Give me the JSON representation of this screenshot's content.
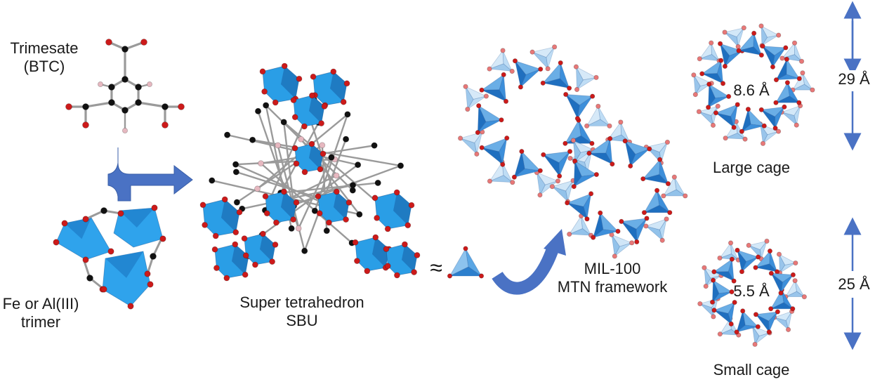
{
  "labels": {
    "trimesate_line1": "Trimesate",
    "trimesate_line2": "(BTC)",
    "trimer_line1": "Fe or Al(III)",
    "trimer_line2": "trimer",
    "super_line1": "Super tetrahedron",
    "super_line2": "SBU",
    "approx_symbol": "≈",
    "mil_line1": "MIL-100",
    "mil_line2": "MTN framework",
    "large_cage": "Large cage",
    "small_cage": "Small cage",
    "large_pore": "8.6 Å",
    "small_pore": "5.5 Å",
    "large_size": "29 Å",
    "small_size": "25 Å"
  },
  "colors": {
    "tetra_light": "#7fbcea",
    "tetra_mid": "#3d96e0",
    "tetra_dark": "#1f6fbf",
    "octa": "#2a9ee6",
    "oxygen": "#cc1a1a",
    "oxygen_light": "#e87878",
    "carbon": "#111111",
    "hydrogen": "#e6b8c0",
    "bond": "#9a9a9a",
    "arrow": "#4a72c4"
  }
}
